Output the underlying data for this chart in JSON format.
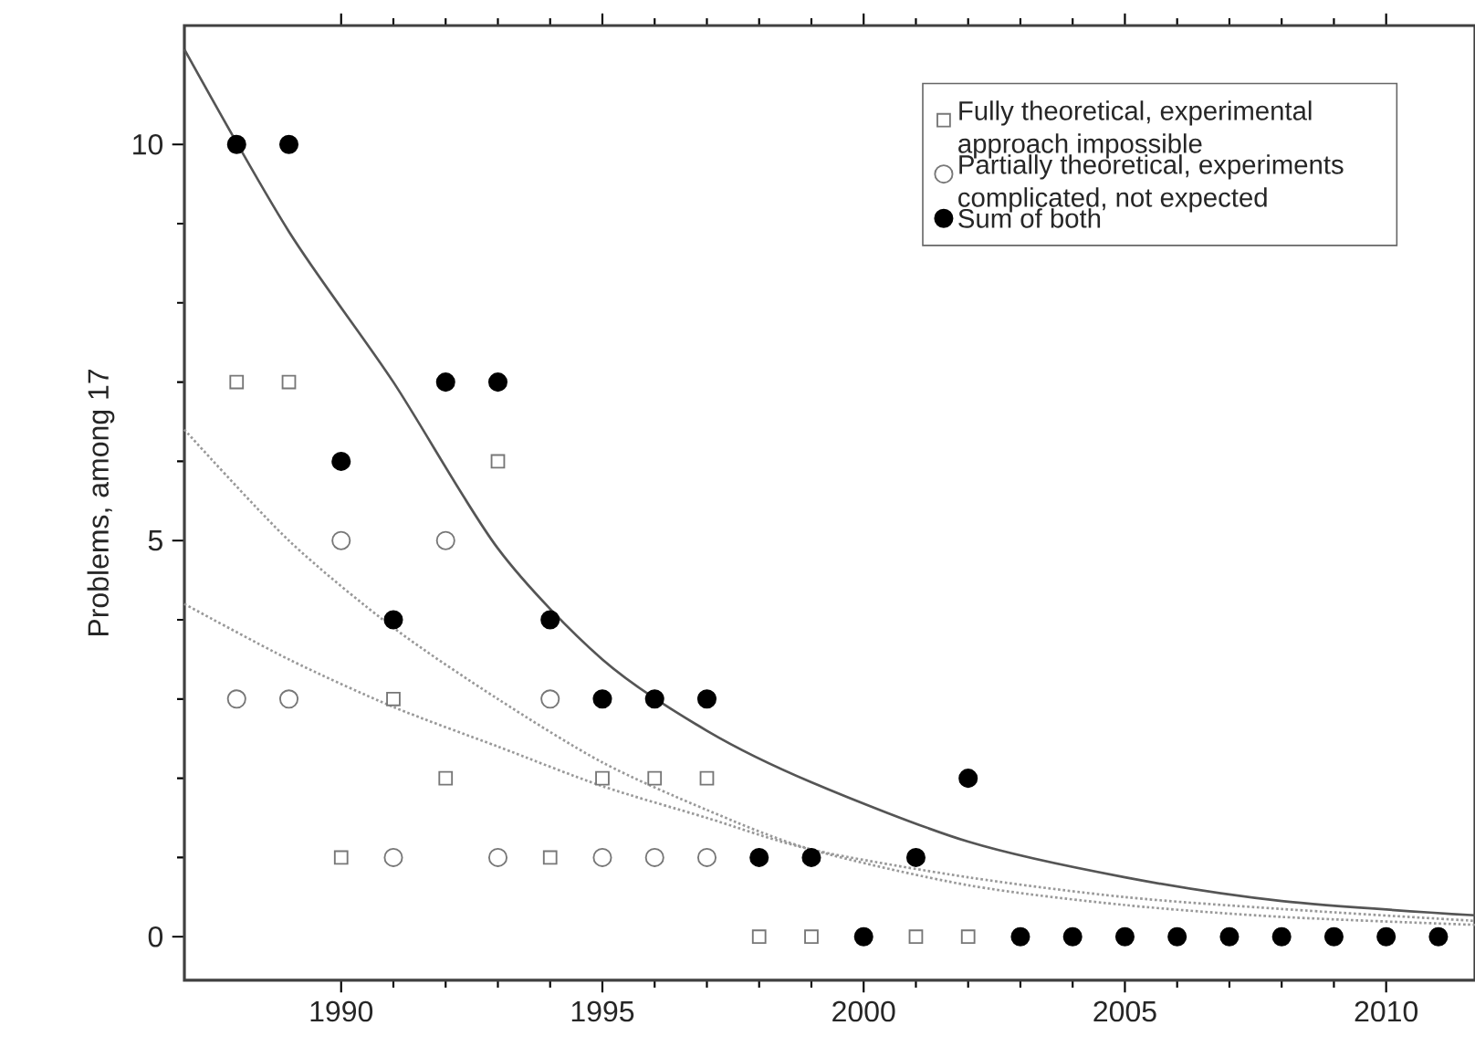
{
  "chart_data": {
    "type": "scatter",
    "ylabel": "Problems, among 17",
    "xlim": [
      1987,
      2011.7
    ],
    "ylim": [
      -0.55,
      11.5
    ],
    "xticks": [
      1990,
      1995,
      2000,
      2005,
      2010
    ],
    "yticks": [
      0,
      5,
      10
    ],
    "legend": "top right",
    "grid": false,
    "series": [
      {
        "name": "Fully theoretical, experimental approach impossible",
        "marker": "square",
        "color": "#777777",
        "x": [
          1988,
          1989,
          1990,
          1991,
          1992,
          1993,
          1994,
          1995,
          1996,
          1997,
          1998,
          1999,
          2001,
          2002
        ],
        "values": [
          7,
          7,
          1,
          3,
          2,
          6,
          1,
          2,
          2,
          2,
          0,
          0,
          0,
          0
        ]
      },
      {
        "name": "Partially theoretical, experiments complicated, not expected",
        "marker": "circle",
        "color": "#777777",
        "x": [
          1988,
          1989,
          1990,
          1991,
          1992,
          1993,
          1994,
          1995,
          1996,
          1997
        ],
        "values": [
          3,
          3,
          5,
          1,
          5,
          1,
          3,
          1,
          1,
          1
        ]
      },
      {
        "name": "Sum of both",
        "marker": "circle",
        "color": "#000000",
        "x": [
          1988,
          1989,
          1990,
          1991,
          1992,
          1993,
          1994,
          1995,
          1996,
          1997,
          1998,
          1999,
          2000,
          2001,
          2002,
          2003,
          2004,
          2005,
          2006,
          2007,
          2008,
          2009,
          2010,
          2011
        ],
        "values": [
          10,
          10,
          6,
          4,
          7,
          7,
          4,
          3,
          3,
          3,
          1,
          1,
          0,
          1,
          2,
          0,
          0,
          0,
          0,
          0,
          0,
          0,
          0,
          0
        ]
      },
      {
        "type": "line",
        "line_style": "dotted",
        "color": "#999999",
        "x": [
          1987,
          1989,
          1991,
          1993,
          1995,
          1997,
          1999,
          2002,
          2005,
          2008,
          2011.7
        ],
        "values": [
          6.4,
          5.0,
          3.9,
          3.0,
          2.2,
          1.6,
          1.1,
          0.65,
          0.4,
          0.25,
          0.15
        ]
      },
      {
        "type": "line",
        "line_style": "dotted",
        "color": "#999999",
        "x": [
          1987,
          1989,
          1991,
          1993,
          1995,
          1997,
          1999,
          2002,
          2005,
          2008,
          2011.7
        ],
        "values": [
          4.2,
          3.5,
          2.9,
          2.4,
          1.9,
          1.5,
          1.1,
          0.75,
          0.5,
          0.35,
          0.2
        ]
      },
      {
        "type": "line",
        "line_style": "solid",
        "color": "#555555",
        "x": [
          1987,
          1989,
          1991,
          1993,
          1995,
          1997,
          1999,
          2002,
          2005,
          2008,
          2011.7
        ],
        "values": [
          11.2,
          8.9,
          7.0,
          4.9,
          3.5,
          2.6,
          1.95,
          1.2,
          0.75,
          0.45,
          0.27
        ]
      }
    ]
  }
}
